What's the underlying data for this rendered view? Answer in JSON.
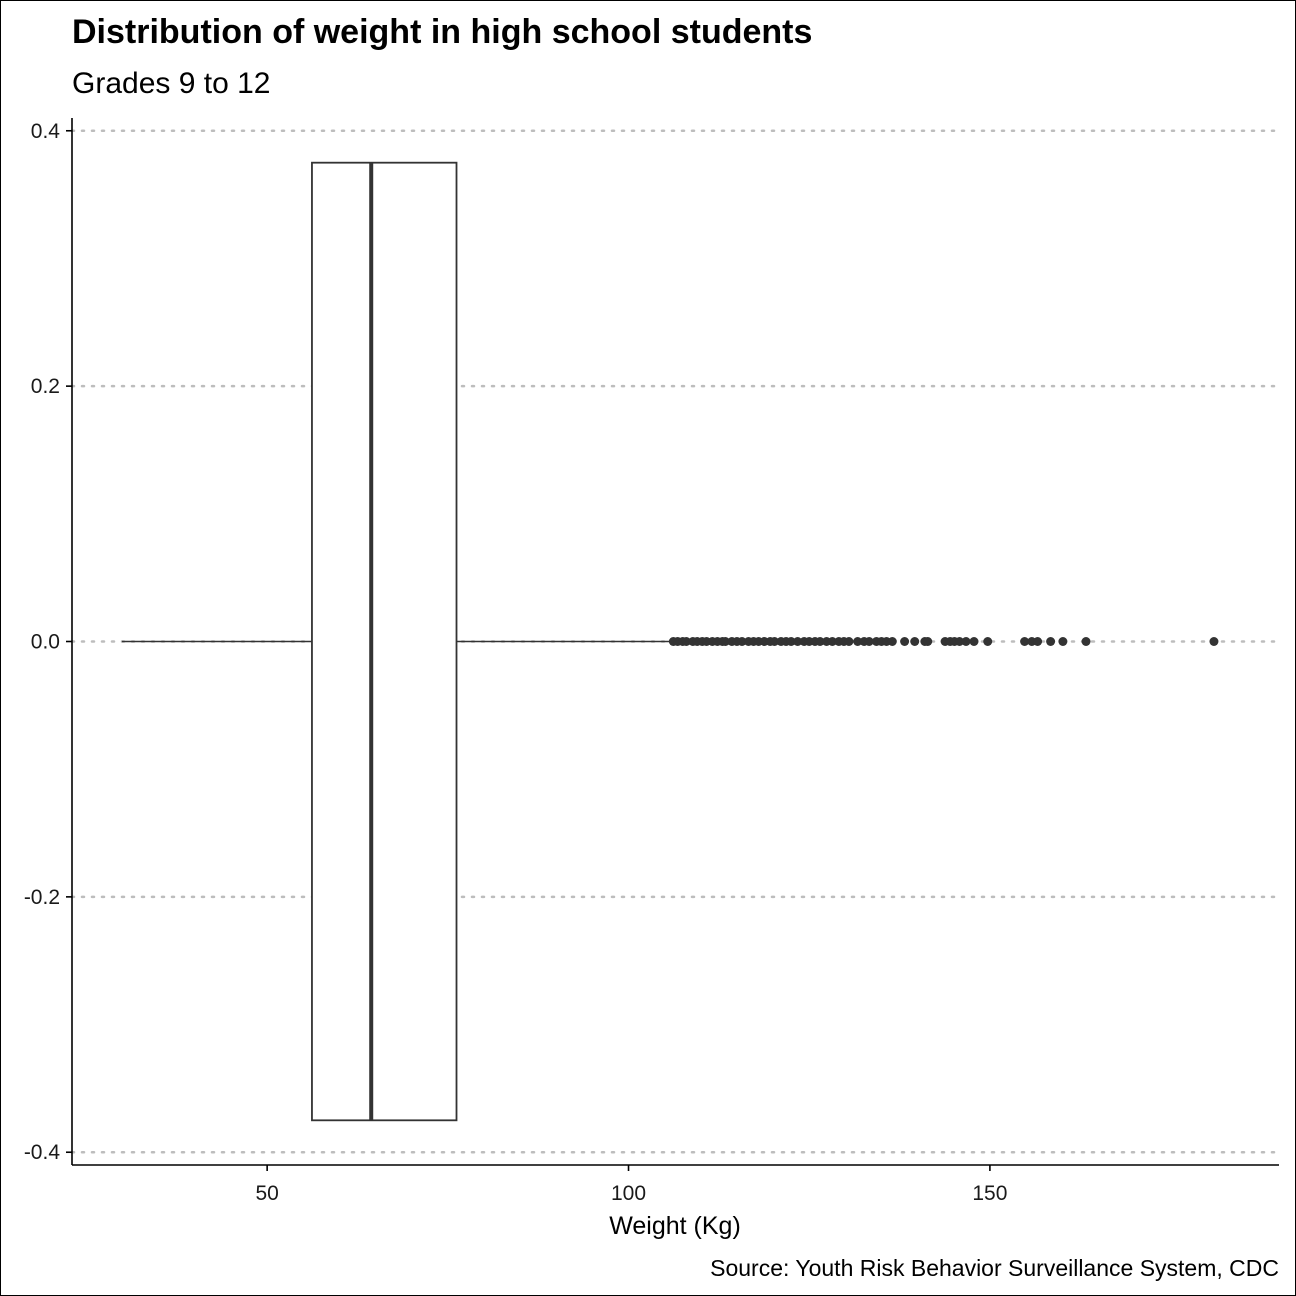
{
  "chart_data": {
    "type": "boxplot",
    "title": "Distribution of weight in high school students",
    "subtitle": "Grades 9 to 12",
    "xlabel": "Weight (Kg)",
    "ylabel": "",
    "caption": "Source: Youth Risk Behavior Surveillance System, CDC",
    "xlim": [
      23,
      190
    ],
    "ylim": [
      -0.41,
      0.41
    ],
    "x_ticks": [
      50,
      100,
      150
    ],
    "x_tick_labels": [
      "50",
      "100",
      "150"
    ],
    "y_ticks": [
      0.4,
      0.2,
      0.0,
      -0.2,
      -0.4
    ],
    "y_tick_labels": [
      "0.4",
      "0.2",
      "0.0",
      "-0.2",
      "-0.4"
    ],
    "grid": "horizontal dotted",
    "box": {
      "whisker_low": 29.9,
      "q1": 56.2,
      "median": 64.4,
      "q3": 76.2,
      "whisker_high": 105.7,
      "box_ymin": -0.375,
      "box_ymax": 0.375
    },
    "outliers": [
      106.2,
      106.8,
      107.5,
      108.0,
      108.9,
      109.5,
      110.2,
      110.8,
      111.6,
      112.3,
      113.0,
      113.4,
      114.3,
      115.0,
      115.7,
      116.6,
      117.3,
      118.0,
      118.8,
      119.6,
      120.2,
      121.1,
      121.8,
      122.5,
      123.4,
      124.3,
      125.0,
      125.8,
      126.5,
      127.4,
      128.2,
      129.1,
      129.8,
      130.5,
      131.7,
      132.6,
      133.3,
      134.3,
      135.0,
      135.7,
      136.5,
      138.2,
      139.6,
      141.0,
      141.4,
      143.8,
      144.5,
      145.1,
      145.8,
      146.7,
      147.8,
      149.7,
      154.8,
      155.8,
      156.6,
      158.4,
      160.1,
      163.3,
      181.0
    ],
    "colors": {
      "box_fill": "#ffffff",
      "box_stroke": "#333333",
      "median": "#333333",
      "outlier": "#333333",
      "grid": "#bdbdbd",
      "axis": "#000000"
    }
  }
}
